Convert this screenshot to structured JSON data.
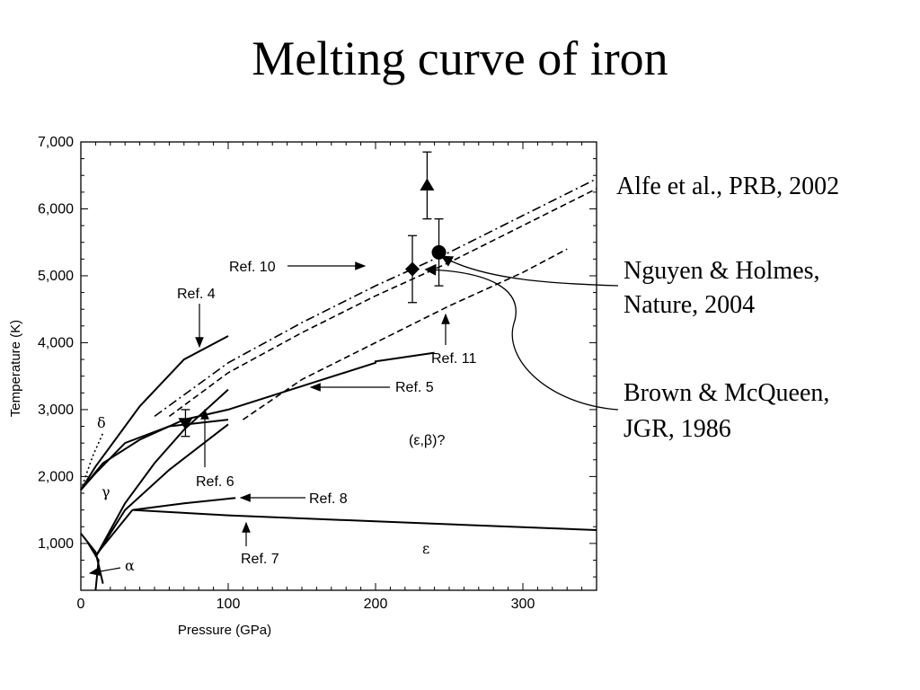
{
  "slide": {
    "title": "Melting curve of iron"
  },
  "side_labels": {
    "alfe": "Alfe et al., PRB, 2002",
    "nguyen_line1": "Nguyen & Holmes,",
    "nguyen_line2": "Nature, 2004",
    "brown_line1": "Brown & McQueen,",
    "brown_line2": "JGR, 1986"
  },
  "chart_data": {
    "type": "line",
    "xlabel": "Pressure (GPa)",
    "ylabel": "Temperature (K)",
    "xlim": [
      0,
      350
    ],
    "ylim": [
      300,
      7000
    ],
    "xticks": [
      0,
      100,
      200,
      300
    ],
    "xtick_labels": [
      "0",
      "100",
      "200",
      "300"
    ],
    "yticks": [
      1000,
      2000,
      3000,
      4000,
      5000,
      6000,
      7000
    ],
    "ytick_labels": [
      "1,000",
      "2,000",
      "3,000",
      "4,000",
      "5,000",
      "6,000",
      "7,000"
    ],
    "series": [
      {
        "style": "solid",
        "points": [
          [
            0,
            1800
          ],
          [
            10,
            2150
          ],
          [
            40,
            3050
          ],
          [
            70,
            3750
          ],
          [
            100,
            4100
          ]
        ]
      },
      {
        "style": "solid",
        "points": [
          [
            0,
            1800
          ],
          [
            15,
            2200
          ],
          [
            40,
            2550
          ],
          [
            70,
            2850
          ],
          [
            100,
            3000
          ],
          [
            150,
            3350
          ],
          [
            200,
            3700
          ],
          [
            200,
            3720
          ],
          [
            240,
            3850
          ]
        ]
      },
      {
        "style": "solid",
        "points": [
          [
            10,
            800
          ],
          [
            30,
            1600
          ],
          [
            50,
            2200
          ],
          [
            70,
            2700
          ],
          [
            100,
            3300
          ]
        ]
      },
      {
        "style": "solid",
        "points": [
          [
            0,
            1800
          ],
          [
            10,
            2050
          ],
          [
            30,
            2500
          ],
          [
            60,
            2750
          ],
          [
            100,
            2850
          ]
        ]
      },
      {
        "style": "solid",
        "points": [
          [
            10,
            800
          ],
          [
            30,
            1500
          ],
          [
            60,
            2100
          ],
          [
            100,
            2780
          ]
        ]
      },
      {
        "style": "solid",
        "points": [
          [
            35,
            1500
          ],
          [
            70,
            1600
          ],
          [
            105,
            1680
          ]
        ]
      },
      {
        "style": "solid",
        "points": [
          [
            35,
            1500
          ],
          [
            100,
            1420
          ],
          [
            200,
            1330
          ],
          [
            350,
            1200
          ]
        ]
      },
      {
        "style": "solid",
        "points": [
          [
            0,
            1150
          ],
          [
            10,
            870
          ],
          [
            15,
            400
          ]
        ]
      },
      {
        "style": "solid",
        "points": [
          [
            5,
            1000
          ],
          [
            12,
            750
          ],
          [
            10,
            300
          ]
        ]
      },
      {
        "style": "solid",
        "points": [
          [
            10,
            820
          ],
          [
            35,
            1500
          ]
        ]
      },
      {
        "style": "dashdot",
        "points": [
          [
            50,
            2900
          ],
          [
            100,
            3700
          ],
          [
            150,
            4300
          ],
          [
            200,
            4850
          ],
          [
            250,
            5350
          ],
          [
            300,
            5900
          ],
          [
            350,
            6450
          ]
        ]
      },
      {
        "style": "dashed",
        "points": [
          [
            60,
            2900
          ],
          [
            100,
            3550
          ],
          [
            150,
            4150
          ],
          [
            200,
            4700
          ],
          [
            250,
            5200
          ],
          [
            300,
            5750
          ],
          [
            350,
            6300
          ]
        ]
      },
      {
        "style": "dashed",
        "points": [
          [
            110,
            2850
          ],
          [
            150,
            3450
          ],
          [
            200,
            4000
          ],
          [
            250,
            4550
          ],
          [
            300,
            5050
          ],
          [
            330,
            5400
          ]
        ]
      },
      {
        "style": "dotted",
        "points": [
          [
            0,
            1800
          ],
          [
            8,
            2300
          ],
          [
            15,
            2650
          ]
        ]
      }
    ],
    "markers": [
      {
        "shape": "triangle-up",
        "x": 235,
        "y": 6350,
        "err": [
          5850,
          6850
        ]
      },
      {
        "shape": "circle",
        "x": 243,
        "y": 5350,
        "err": [
          4850,
          5850
        ]
      },
      {
        "shape": "diamond",
        "x": 225,
        "y": 5100,
        "err": [
          4600,
          5600
        ]
      },
      {
        "shape": "triangle-down",
        "x": 71,
        "y": 2800,
        "err": [
          2600,
          3000
        ]
      }
    ],
    "annotations": [
      {
        "text": "Ref. 10"
      },
      {
        "text": "Ref. 4"
      },
      {
        "text": "Ref. 5"
      },
      {
        "text": "Ref. 11"
      },
      {
        "text": "Ref. 6"
      },
      {
        "text": "Ref. 8"
      },
      {
        "text": "Ref. 7"
      },
      {
        "text": "(ε,β)?"
      },
      {
        "text": "δ"
      },
      {
        "text": "γ"
      },
      {
        "text": "α"
      },
      {
        "text": "ε"
      }
    ]
  }
}
